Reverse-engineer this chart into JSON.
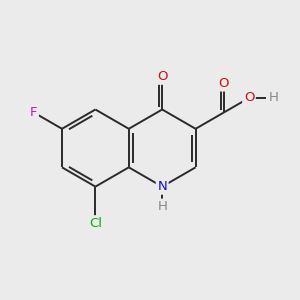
{
  "background_color": "#ebebeb",
  "bond_color": "#2a2a2a",
  "bond_width": 1.4,
  "atoms": {
    "N": {
      "color": "#1010cc",
      "fontsize": 9.5
    },
    "O": {
      "color": "#cc1010",
      "fontsize": 9.5
    },
    "F": {
      "color": "#cc10cc",
      "fontsize": 9.5
    },
    "Cl": {
      "color": "#10aa10",
      "fontsize": 9.5
    },
    "H": {
      "color": "#888888",
      "fontsize": 9.5
    }
  },
  "figsize": [
    3.0,
    3.0
  ],
  "dpi": 100
}
